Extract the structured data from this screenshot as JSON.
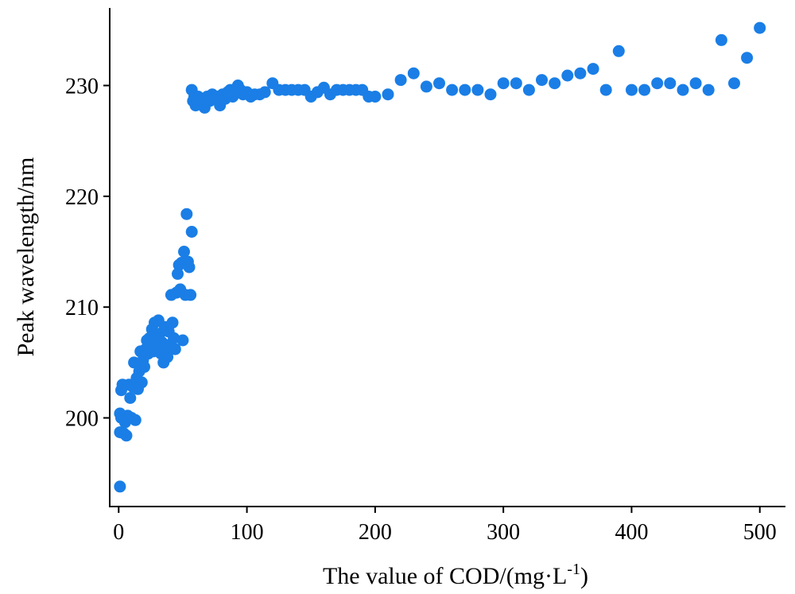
{
  "chart_data": {
    "type": "scatter",
    "title": "",
    "xlabel_main": "The value of COD/(mg·L",
    "xlabel_sup": "-1",
    "xlabel_end": ")",
    "ylabel": "Peak wavelength/nm",
    "xlim": [
      -7,
      520
    ],
    "ylim": [
      192,
      237
    ],
    "xticks": [
      0,
      100,
      200,
      300,
      400,
      500
    ],
    "yticks": [
      200,
      210,
      220,
      230
    ],
    "xtick_labels": [
      "0",
      "100",
      "200",
      "300",
      "400",
      "500"
    ],
    "ytick_labels": [
      "200",
      "210",
      "220",
      "230"
    ],
    "grid": false,
    "marker_color": "#1a7ee6",
    "series": [
      {
        "points": [
          [
            1,
            193.8
          ],
          [
            1,
            198.7
          ],
          [
            1,
            200.4
          ],
          [
            2,
            200.0
          ],
          [
            2,
            202.5
          ],
          [
            3,
            203.0
          ],
          [
            4,
            198.6
          ],
          [
            5,
            199.6
          ],
          [
            6,
            198.4
          ],
          [
            7,
            200.2
          ],
          [
            8,
            203.0
          ],
          [
            9,
            201.8
          ],
          [
            10,
            200.0
          ],
          [
            11,
            202.8
          ],
          [
            12,
            205.0
          ],
          [
            13,
            199.8
          ],
          [
            14,
            203.6
          ],
          [
            15,
            202.6
          ],
          [
            16,
            204.2
          ],
          [
            17,
            206.0
          ],
          [
            18,
            203.2
          ],
          [
            19,
            205.2
          ],
          [
            20,
            204.6
          ],
          [
            21,
            206.2
          ],
          [
            22,
            207.0
          ],
          [
            23,
            205.8
          ],
          [
            24,
            207.2
          ],
          [
            25,
            206.5
          ],
          [
            26,
            208.0
          ],
          [
            27,
            206.0
          ],
          [
            28,
            208.6
          ],
          [
            29,
            207.2
          ],
          [
            30,
            206.3
          ],
          [
            31,
            208.8
          ],
          [
            32,
            207.6
          ],
          [
            33,
            205.8
          ],
          [
            34,
            206.8
          ],
          [
            35,
            205.0
          ],
          [
            36,
            208.2
          ],
          [
            37,
            206.2
          ],
          [
            38,
            205.5
          ],
          [
            39,
            207.8
          ],
          [
            40,
            206.6
          ],
          [
            41,
            211.1
          ],
          [
            42,
            208.6
          ],
          [
            43,
            207.2
          ],
          [
            44,
            206.2
          ],
          [
            45,
            211.3
          ],
          [
            46,
            213.0
          ],
          [
            47,
            213.8
          ],
          [
            48,
            211.6
          ],
          [
            49,
            214.0
          ],
          [
            50,
            207.0
          ],
          [
            51,
            215.0
          ],
          [
            52,
            211.1
          ],
          [
            53,
            218.4
          ],
          [
            54,
            214.1
          ],
          [
            55,
            213.6
          ],
          [
            56,
            211.1
          ],
          [
            57,
            216.8
          ],
          [
            57,
            229.6
          ],
          [
            58,
            228.6
          ],
          [
            59,
            229.0
          ],
          [
            60,
            228.2
          ],
          [
            61,
            228.8
          ],
          [
            62,
            229.0
          ],
          [
            63,
            228.4
          ],
          [
            65,
            228.6
          ],
          [
            67,
            228.0
          ],
          [
            69,
            229.0
          ],
          [
            71,
            228.6
          ],
          [
            73,
            229.2
          ],
          [
            75,
            228.8
          ],
          [
            77,
            229.0
          ],
          [
            79,
            228.2
          ],
          [
            81,
            229.2
          ],
          [
            83,
            228.8
          ],
          [
            85,
            229.4
          ],
          [
            87,
            229.6
          ],
          [
            89,
            229.0
          ],
          [
            91,
            229.6
          ],
          [
            93,
            230.0
          ],
          [
            95,
            229.6
          ],
          [
            97,
            229.2
          ],
          [
            100,
            229.4
          ],
          [
            103,
            229.0
          ],
          [
            106,
            229.2
          ],
          [
            110,
            229.2
          ],
          [
            114,
            229.4
          ],
          [
            120,
            230.2
          ],
          [
            125,
            229.6
          ],
          [
            130,
            229.6
          ],
          [
            135,
            229.6
          ],
          [
            140,
            229.6
          ],
          [
            145,
            229.6
          ],
          [
            150,
            229.0
          ],
          [
            155,
            229.4
          ],
          [
            160,
            229.8
          ],
          [
            165,
            229.2
          ],
          [
            170,
            229.6
          ],
          [
            175,
            229.6
          ],
          [
            180,
            229.6
          ],
          [
            185,
            229.6
          ],
          [
            190,
            229.6
          ],
          [
            195,
            229.0
          ],
          [
            200,
            229.0
          ],
          [
            210,
            229.2
          ],
          [
            220,
            230.5
          ],
          [
            230,
            231.1
          ],
          [
            240,
            229.9
          ],
          [
            250,
            230.2
          ],
          [
            260,
            229.6
          ],
          [
            270,
            229.6
          ],
          [
            280,
            229.6
          ],
          [
            290,
            229.2
          ],
          [
            300,
            230.2
          ],
          [
            310,
            230.2
          ],
          [
            320,
            229.6
          ],
          [
            330,
            230.5
          ],
          [
            340,
            230.2
          ],
          [
            350,
            230.9
          ],
          [
            360,
            231.1
          ],
          [
            370,
            231.5
          ],
          [
            380,
            229.6
          ],
          [
            390,
            233.1
          ],
          [
            400,
            229.6
          ],
          [
            410,
            229.6
          ],
          [
            420,
            230.2
          ],
          [
            430,
            230.2
          ],
          [
            440,
            229.6
          ],
          [
            450,
            230.2
          ],
          [
            460,
            229.6
          ],
          [
            470,
            234.1
          ],
          [
            480,
            230.2
          ],
          [
            490,
            232.5
          ],
          [
            500,
            235.2
          ]
        ]
      }
    ]
  }
}
